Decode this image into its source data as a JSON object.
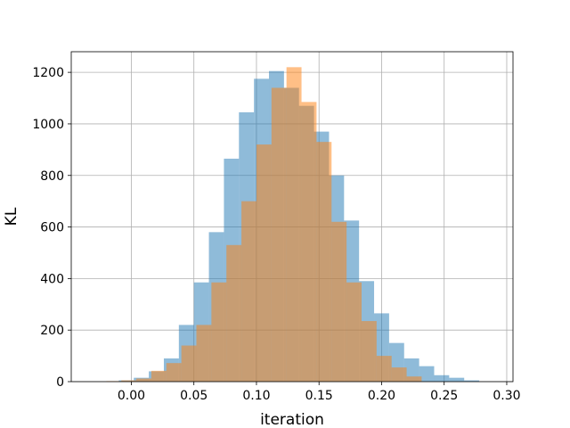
{
  "chart_data": {
    "type": "bar",
    "xlabel": "iteration",
    "ylabel": "KL",
    "xlim": [
      -0.048,
      0.305
    ],
    "ylim": [
      0,
      1280
    ],
    "grid": true,
    "x_ticks": [
      "0.00",
      "0.05",
      "0.10",
      "0.15",
      "0.20",
      "0.25",
      "0.30"
    ],
    "y_ticks": [
      "0",
      "200",
      "400",
      "600",
      "800",
      "1000",
      "1200"
    ],
    "series": [
      {
        "color": "#1f77b4",
        "alpha": 0.5,
        "bin_edges": [
          -0.01,
          0.002,
          0.014,
          0.026,
          0.038,
          0.05,
          0.062,
          0.074,
          0.086,
          0.098,
          0.11,
          0.122,
          0.134,
          0.146,
          0.158,
          0.17,
          0.182,
          0.194,
          0.206,
          0.218,
          0.23,
          0.242,
          0.254,
          0.266,
          0.278
        ],
        "counts": [
          5,
          15,
          40,
          90,
          220,
          385,
          580,
          865,
          1045,
          1175,
          1205,
          1140,
          1070,
          970,
          800,
          625,
          390,
          265,
          150,
          90,
          60,
          25,
          15,
          5
        ]
      },
      {
        "color": "#ff7f0e",
        "alpha": 0.5,
        "bin_edges": [
          -0.02,
          -0.008,
          0.004,
          0.016,
          0.028,
          0.04,
          0.052,
          0.064,
          0.076,
          0.088,
          0.1,
          0.112,
          0.124,
          0.136,
          0.148,
          0.16,
          0.172,
          0.184,
          0.196,
          0.208,
          0.22,
          0.232
        ],
        "counts": [
          2,
          5,
          12,
          42,
          72,
          140,
          220,
          385,
          530,
          700,
          920,
          1140,
          1220,
          1085,
          930,
          620,
          385,
          235,
          100,
          55,
          20
        ]
      }
    ]
  }
}
